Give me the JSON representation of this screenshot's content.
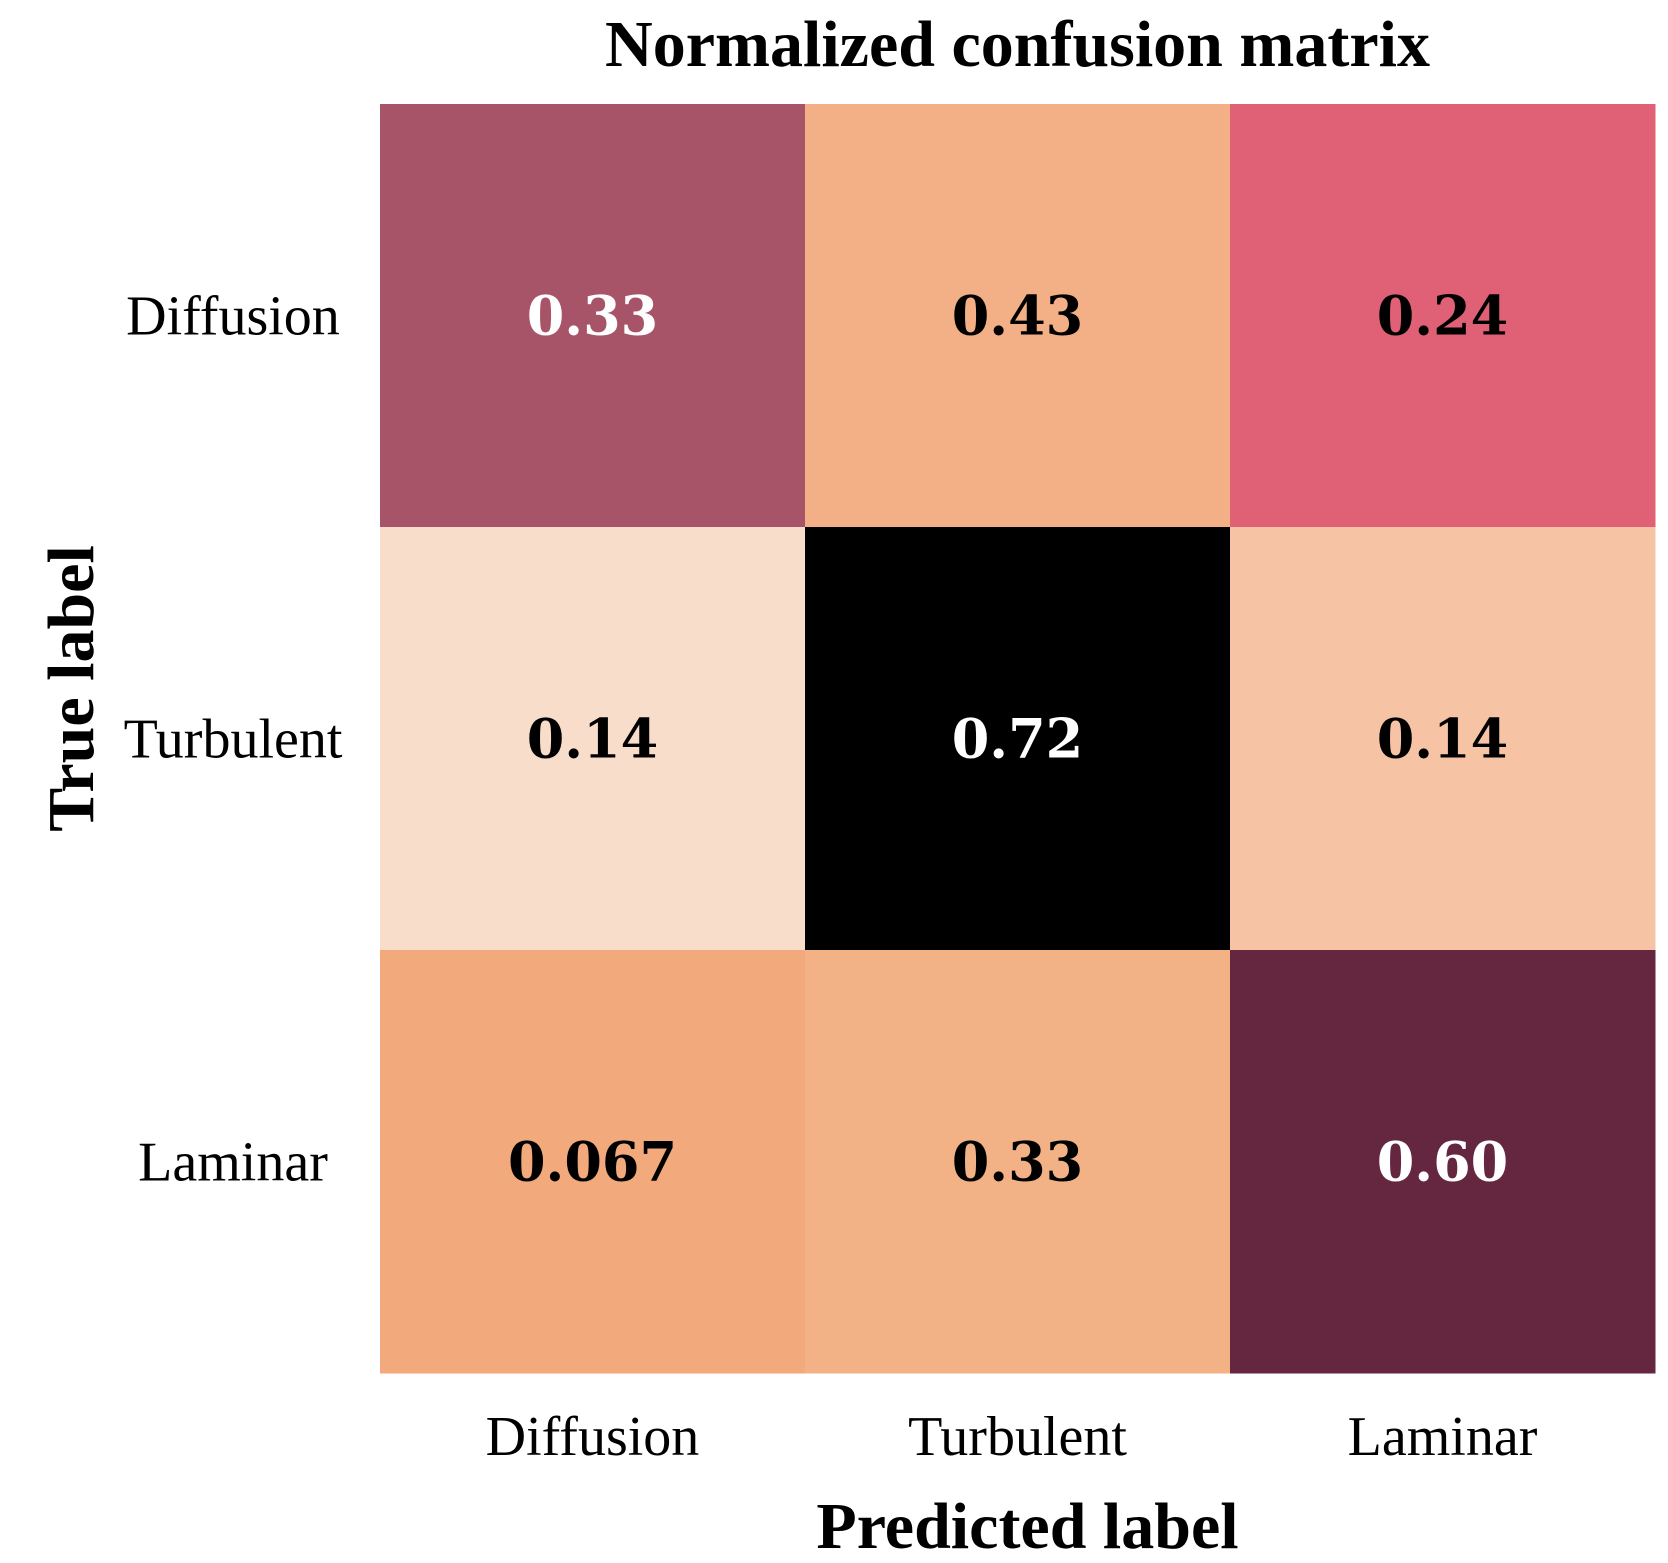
{
  "chart_data": {
    "type": "heatmap",
    "title": "Normalized confusion matrix",
    "xlabel": "Predicted label",
    "ylabel": "True label",
    "x_categories": [
      "Diffusion",
      "Turbulent",
      "Laminar"
    ],
    "y_categories": [
      "Diffusion",
      "Turbulent",
      "Laminar"
    ],
    "values": [
      [
        0.33,
        0.43,
        0.24
      ],
      [
        0.14,
        0.72,
        0.14
      ],
      [
        0.067,
        0.33,
        0.6
      ]
    ],
    "value_labels": [
      [
        "0.33",
        "0.43",
        "0.24"
      ],
      [
        "0.14",
        "0.72",
        "0.14"
      ],
      [
        "0.067",
        "0.33",
        "0.60"
      ]
    ],
    "cell_colors": [
      [
        "#a85468",
        "#f3b086",
        "#e06075"
      ],
      [
        "#f9ddcb",
        "#000000",
        "#f6c4a4"
      ],
      [
        "#f2a97c",
        "#f3b286",
        "#652640"
      ]
    ],
    "text_colors": [
      [
        "#ffffff",
        "#000000",
        "#000000"
      ],
      [
        "#000000",
        "#ffffff",
        "#000000"
      ],
      [
        "#000000",
        "#000000",
        "#ffffff"
      ]
    ],
    "colorbar": false
  }
}
